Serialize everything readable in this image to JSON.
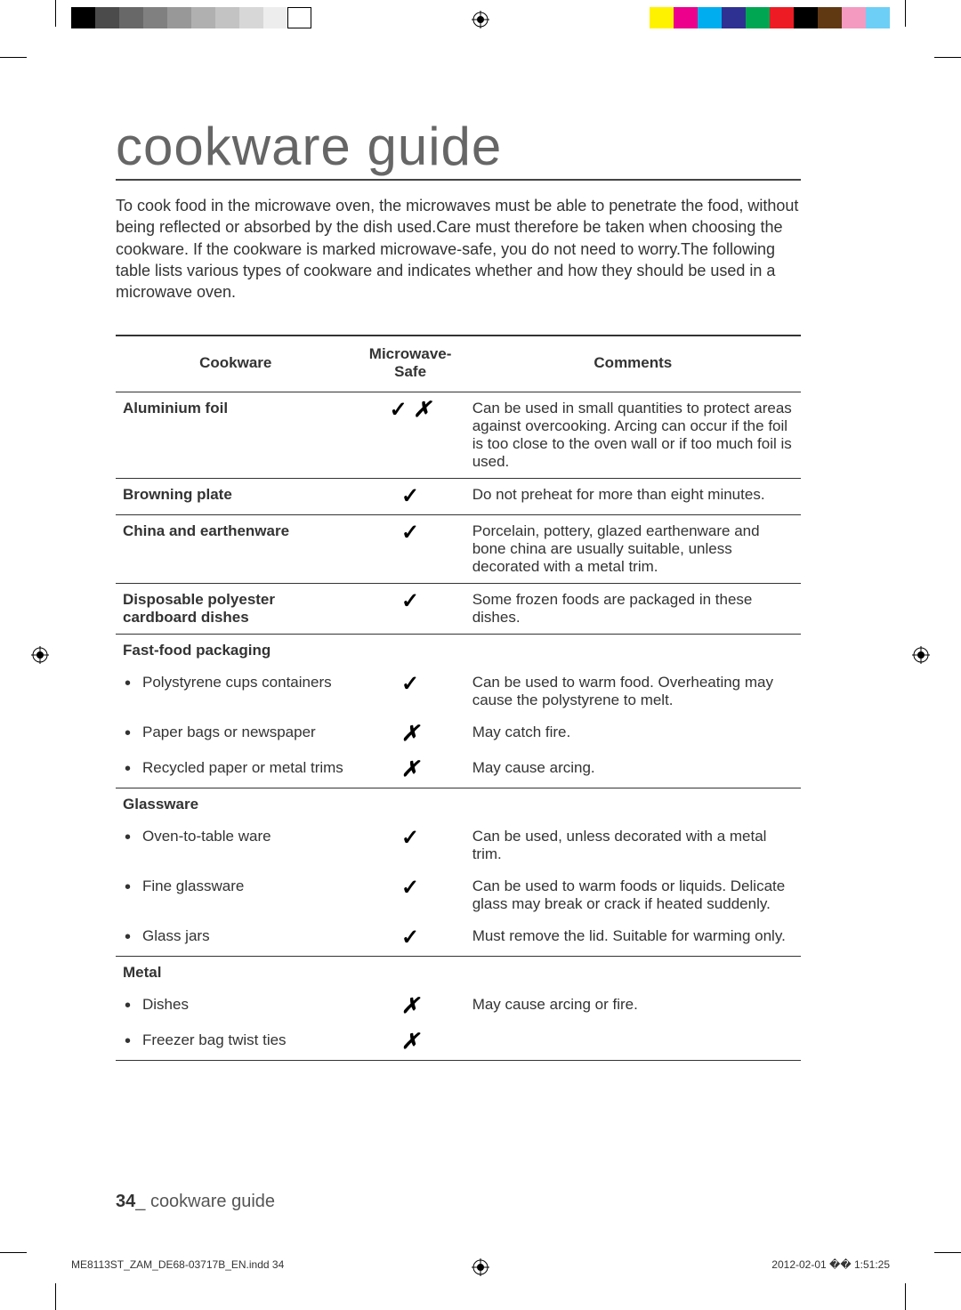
{
  "colorBar": {
    "left": [
      "#000000",
      "#4b4b4b",
      "#686868",
      "#808080",
      "#989898",
      "#b0b0b0",
      "#c3c3c3",
      "#d7d7d7",
      "#ededed",
      "#ffffff"
    ],
    "right": [
      "#fff200",
      "#ec008c",
      "#00aeef",
      "#2e3192",
      "#00a651",
      "#ed1c24",
      "#000000",
      "#603913",
      "#f49ac1",
      "#6dcff6"
    ]
  },
  "title": "cookware guide",
  "intro": "To cook food in the microwave oven, the microwaves must be able to penetrate the food, without being reflected or absorbed by the dish used.Care must therefore be taken when choosing the cookware. If the cookware is marked microwave-safe, you do not need to worry.The following table lists various types of cookware and indicates whether and how they should be used in a microwave oven.",
  "table": {
    "headers": [
      "Cookware",
      "Microwave-Safe",
      "Comments"
    ],
    "rows": [
      {
        "type": "main",
        "name": "Aluminium foil",
        "safe": "both",
        "comment": "Can be used in small quantities to protect areas against overcooking. Arcing can occur if the foil is too close to the oven wall or if too much foil is used."
      },
      {
        "type": "main",
        "name": "Browning plate",
        "safe": "yes",
        "comment": "Do not preheat for more than eight minutes."
      },
      {
        "type": "main",
        "name": "China and earthenware",
        "safe": "yes",
        "comment": "Porcelain, pottery, glazed earthenware and bone china are usually suitable, unless decorated with a metal trim."
      },
      {
        "type": "main",
        "name": "Disposable polyester cardboard dishes",
        "safe": "yes",
        "comment": "Some frozen foods are packaged in these dishes."
      },
      {
        "type": "category",
        "name": "Fast-food packaging",
        "safe": "",
        "comment": ""
      },
      {
        "type": "sub",
        "name": "Polystyrene cups containers",
        "safe": "yes",
        "comment": "Can be used to warm food. Overheating may cause the polystyrene to melt."
      },
      {
        "type": "sub",
        "name": "Paper bags or newspaper",
        "safe": "no",
        "comment": "May catch fire."
      },
      {
        "type": "sub-last",
        "name": "Recycled paper or metal trims",
        "safe": "no",
        "comment": "May cause arcing."
      },
      {
        "type": "category",
        "name": "Glassware",
        "safe": "",
        "comment": ""
      },
      {
        "type": "sub",
        "name": "Oven-to-table ware",
        "safe": "yes",
        "comment": "Can be used, unless decorated with a metal trim."
      },
      {
        "type": "sub",
        "name": "Fine glassware",
        "safe": "yes",
        "comment": "Can be used to warm foods or liquids. Delicate glass may break or crack if heated suddenly."
      },
      {
        "type": "sub-last",
        "name": "Glass jars",
        "safe": "yes",
        "comment": "Must remove the lid. Suitable for warming only."
      },
      {
        "type": "category",
        "name": "Metal",
        "safe": "",
        "comment": ""
      },
      {
        "type": "sub",
        "name": "Dishes",
        "safe": "no",
        "comment": "May cause arcing or fire."
      },
      {
        "type": "sub-last",
        "name": "Freezer bag twist ties",
        "safe": "no",
        "comment": ""
      }
    ]
  },
  "footer": {
    "pageNum": "34",
    "sep": "_",
    "section": "cookware guide"
  },
  "docInfo": {
    "filename": "ME8113ST_ZAM_DE68-03717B_EN.indd   34",
    "timestamp": "2012-02-01   �� 1:51:25"
  },
  "icons": {
    "check": "✓",
    "cross": "✗"
  }
}
